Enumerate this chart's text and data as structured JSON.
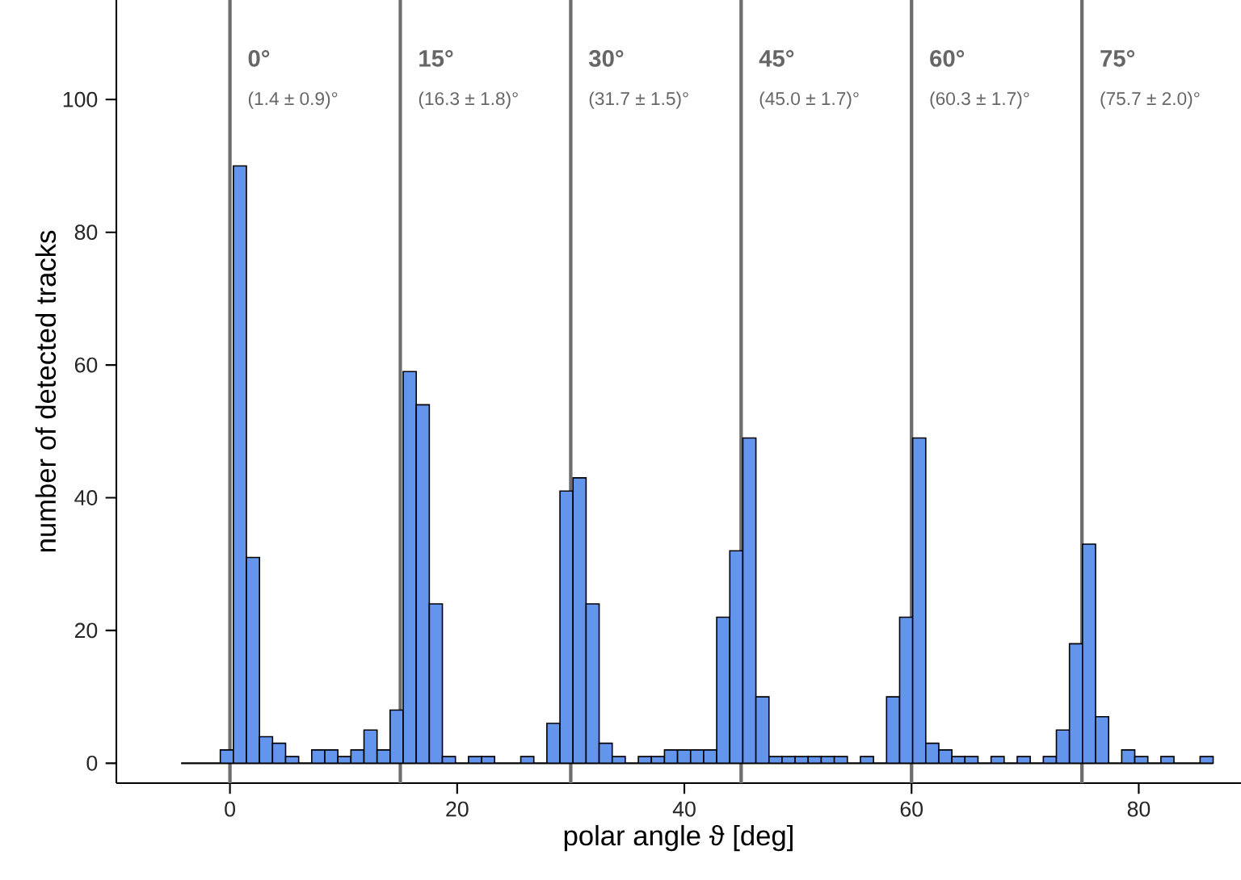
{
  "chart_data": {
    "type": "histogram",
    "xlabel": "polar angle ϑ [deg]",
    "ylabel": "number of detected tracks",
    "color": "#6495ed",
    "bins": [
      -4.3,
      -3.15,
      -2.0,
      -0.85,
      0.3,
      1.45,
      2.6,
      3.75,
      4.9,
      6.05,
      7.2,
      8.35,
      9.5,
      10.65,
      11.8,
      12.95,
      14.1,
      15.25,
      16.4,
      17.55,
      18.7,
      19.85,
      21.0,
      22.15,
      23.3,
      24.45,
      25.6,
      26.75,
      27.9,
      29.05,
      30.2,
      31.35,
      32.5,
      33.65,
      34.8,
      35.95,
      37.1,
      38.25,
      39.4,
      40.55,
      41.7,
      42.85,
      44.0,
      45.15,
      46.3,
      47.45,
      48.6,
      49.75,
      50.9,
      52.05,
      53.2,
      54.35,
      55.5,
      56.65,
      57.8,
      58.95,
      60.1,
      61.25,
      62.4,
      63.55,
      64.7,
      65.85,
      67.0,
      68.15,
      69.3,
      70.45,
      71.6,
      72.75,
      73.9,
      75.05,
      76.2,
      77.35,
      78.5,
      79.65,
      80.8,
      81.95,
      83.1,
      84.25,
      85.4,
      86.55
    ],
    "values": [
      0,
      0,
      0,
      2,
      90,
      31,
      4,
      3,
      1,
      0,
      2,
      2,
      1,
      2,
      5,
      2,
      8,
      59,
      54,
      24,
      1,
      0,
      1,
      1,
      0,
      0,
      1,
      0,
      6,
      41,
      43,
      24,
      3,
      1,
      0,
      1,
      1,
      2,
      2,
      2,
      2,
      22,
      32,
      49,
      10,
      1,
      1,
      1,
      1,
      1,
      1,
      0,
      1,
      0,
      10,
      22,
      49,
      3,
      2,
      1,
      1,
      0,
      1,
      0,
      1,
      0,
      1,
      5,
      18,
      33,
      7,
      0,
      2,
      1,
      0,
      1,
      0,
      0,
      1
    ],
    "xlim": [
      -10,
      89
    ],
    "ylim": [
      -3,
      115
    ],
    "xticks": [
      0,
      20,
      40,
      60,
      80
    ],
    "yticks": [
      0,
      20,
      40,
      60,
      80,
      100
    ],
    "ref_lines": [
      {
        "axis": "x",
        "value": 0,
        "label": "0°",
        "color": "#6e6e6e"
      },
      {
        "axis": "x",
        "value": 15,
        "label": "15°",
        "color": "#6e6e6e"
      },
      {
        "axis": "x",
        "value": 30,
        "label": "30°",
        "color": "#6e6e6e"
      },
      {
        "axis": "x",
        "value": 45,
        "label": "45°",
        "color": "#6e6e6e"
      },
      {
        "axis": "x",
        "value": 60,
        "label": "60°",
        "color": "#6e6e6e"
      },
      {
        "axis": "x",
        "value": 75,
        "label": "75°",
        "color": "#6e6e6e"
      }
    ],
    "annotations": [
      "(1.4 ± 0.9)°",
      "(16.3 ± 1.8)°",
      "(31.7 ± 1.5)°",
      "(45.0 ± 1.7)°",
      "(60.3 ± 1.7)°",
      "(75.7 ± 2.0)°"
    ]
  }
}
